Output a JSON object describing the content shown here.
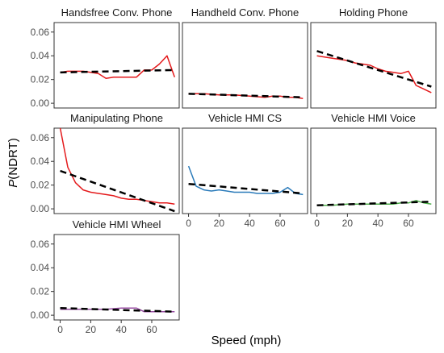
{
  "chart_data": {
    "type": "line",
    "xlabel": "Speed (mph)",
    "ylabel_italic": "P",
    "ylabel_rest": "(NDRT)",
    "xlim": [
      -4,
      78
    ],
    "ylim": [
      -0.004,
      0.068
    ],
    "x_ticks": [
      0,
      20,
      40,
      60
    ],
    "y_ticks": [
      0.0,
      0.02,
      0.04,
      0.06
    ],
    "x_tick_labels": [
      "0",
      "20",
      "40",
      "60"
    ],
    "y_tick_labels": [
      "0.00",
      "0.02",
      "0.04",
      "0.06"
    ],
    "trend_color": "#000000",
    "panels": [
      {
        "title": "Handsfree Conv. Phone",
        "color": "#e41a1c",
        "x": [
          0,
          5,
          10,
          15,
          20,
          25,
          30,
          35,
          40,
          45,
          50,
          55,
          60,
          65,
          70,
          75
        ],
        "values": [
          0.026,
          0.027,
          0.027,
          0.027,
          0.026,
          0.025,
          0.021,
          0.022,
          0.022,
          0.022,
          0.022,
          0.028,
          0.028,
          0.033,
          0.04,
          0.022
        ],
        "trend": [
          0.026,
          0.028
        ]
      },
      {
        "title": "Handheld Conv. Phone",
        "color": "#e41a1c",
        "x": [
          0,
          10,
          20,
          30,
          40,
          50,
          55,
          60,
          65,
          70,
          75
        ],
        "values": [
          0.008,
          0.008,
          0.007,
          0.007,
          0.006,
          0.005,
          0.006,
          0.006,
          0.005,
          0.005,
          0.004
        ],
        "trend": [
          0.008,
          0.005
        ]
      },
      {
        "title": "Holding Phone",
        "color": "#e41a1c",
        "x": [
          0,
          5,
          10,
          15,
          20,
          25,
          30,
          35,
          40,
          45,
          50,
          55,
          60,
          65,
          70,
          75
        ],
        "values": [
          0.04,
          0.039,
          0.038,
          0.037,
          0.036,
          0.034,
          0.033,
          0.032,
          0.029,
          0.027,
          0.026,
          0.025,
          0.027,
          0.015,
          0.012,
          0.009
        ],
        "trend": [
          0.044,
          0.014
        ]
      },
      {
        "title": "Manipulating Phone",
        "color": "#e41a1c",
        "x": [
          0,
          5,
          10,
          15,
          20,
          25,
          30,
          35,
          40,
          45,
          50,
          55,
          60,
          65,
          70,
          75
        ],
        "values": [
          0.068,
          0.035,
          0.022,
          0.016,
          0.014,
          0.013,
          0.012,
          0.011,
          0.009,
          0.008,
          0.008,
          0.007,
          0.006,
          0.005,
          0.005,
          0.004
        ],
        "trend": [
          0.032,
          -0.002
        ]
      },
      {
        "title": "Vehicle HMI CS",
        "color": "#2b7bba",
        "x": [
          0,
          5,
          10,
          15,
          20,
          25,
          30,
          35,
          40,
          45,
          50,
          55,
          60,
          65,
          70,
          75
        ],
        "values": [
          0.036,
          0.019,
          0.016,
          0.015,
          0.016,
          0.015,
          0.014,
          0.014,
          0.014,
          0.013,
          0.013,
          0.013,
          0.014,
          0.018,
          0.013,
          0.012
        ],
        "trend": [
          0.021,
          0.013
        ]
      },
      {
        "title": "Vehicle HMI Voice",
        "color": "#4daf4a",
        "x": [
          0,
          10,
          20,
          30,
          40,
          50,
          55,
          60,
          65,
          70,
          75
        ],
        "values": [
          0.003,
          0.003,
          0.004,
          0.004,
          0.004,
          0.004,
          0.005,
          0.005,
          0.007,
          0.005,
          0.004
        ],
        "trend": [
          0.003,
          0.006
        ]
      },
      {
        "title": "Vehicle HMI Wheel",
        "color": "#984ea3",
        "x": [
          0,
          10,
          20,
          30,
          40,
          45,
          50,
          55,
          60,
          65,
          70,
          75
        ],
        "values": [
          0.005,
          0.005,
          0.005,
          0.005,
          0.006,
          0.006,
          0.006,
          0.003,
          0.003,
          0.003,
          0.003,
          0.003
        ],
        "trend": [
          0.006,
          0.003
        ]
      }
    ]
  }
}
